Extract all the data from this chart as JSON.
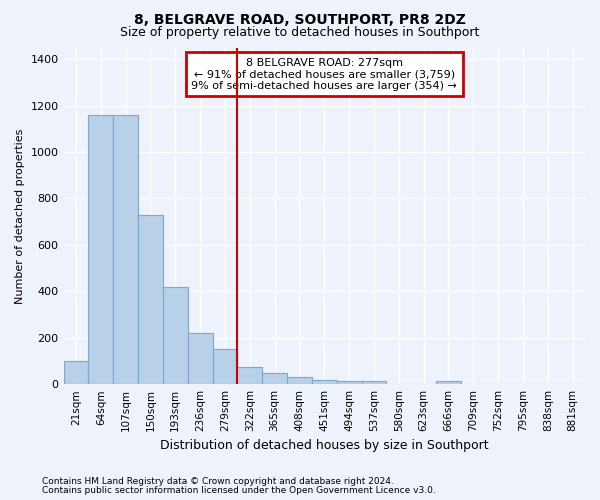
{
  "title1": "8, BELGRAVE ROAD, SOUTHPORT, PR8 2DZ",
  "title2": "Size of property relative to detached houses in Southport",
  "xlabel": "Distribution of detached houses by size in Southport",
  "ylabel": "Number of detached properties",
  "categories": [
    "21sqm",
    "64sqm",
    "107sqm",
    "150sqm",
    "193sqm",
    "236sqm",
    "279sqm",
    "322sqm",
    "365sqm",
    "408sqm",
    "451sqm",
    "494sqm",
    "537sqm",
    "580sqm",
    "623sqm",
    "666sqm",
    "709sqm",
    "752sqm",
    "795sqm",
    "838sqm",
    "881sqm"
  ],
  "values": [
    100,
    1160,
    1160,
    730,
    420,
    220,
    150,
    75,
    50,
    30,
    20,
    15,
    15,
    0,
    0,
    15,
    0,
    0,
    0,
    0,
    0
  ],
  "bar_color": "#b8d0e8",
  "bar_edge_color": "#7aaad0",
  "red_line_index": 6,
  "ylim": [
    0,
    1450
  ],
  "yticks": [
    0,
    200,
    400,
    600,
    800,
    1000,
    1200,
    1400
  ],
  "annotation_text": "8 BELGRAVE ROAD: 277sqm\n← 91% of detached houses are smaller (3,759)\n9% of semi-detached houses are larger (354) →",
  "annotation_box_color": "#ffffff",
  "annotation_box_edge": "#cc0000",
  "red_line_color": "#cc0000",
  "footer1": "Contains HM Land Registry data © Crown copyright and database right 2024.",
  "footer2": "Contains public sector information licensed under the Open Government Licence v3.0.",
  "bg_color": "#eef2fb",
  "grid_color": "#ffffff"
}
